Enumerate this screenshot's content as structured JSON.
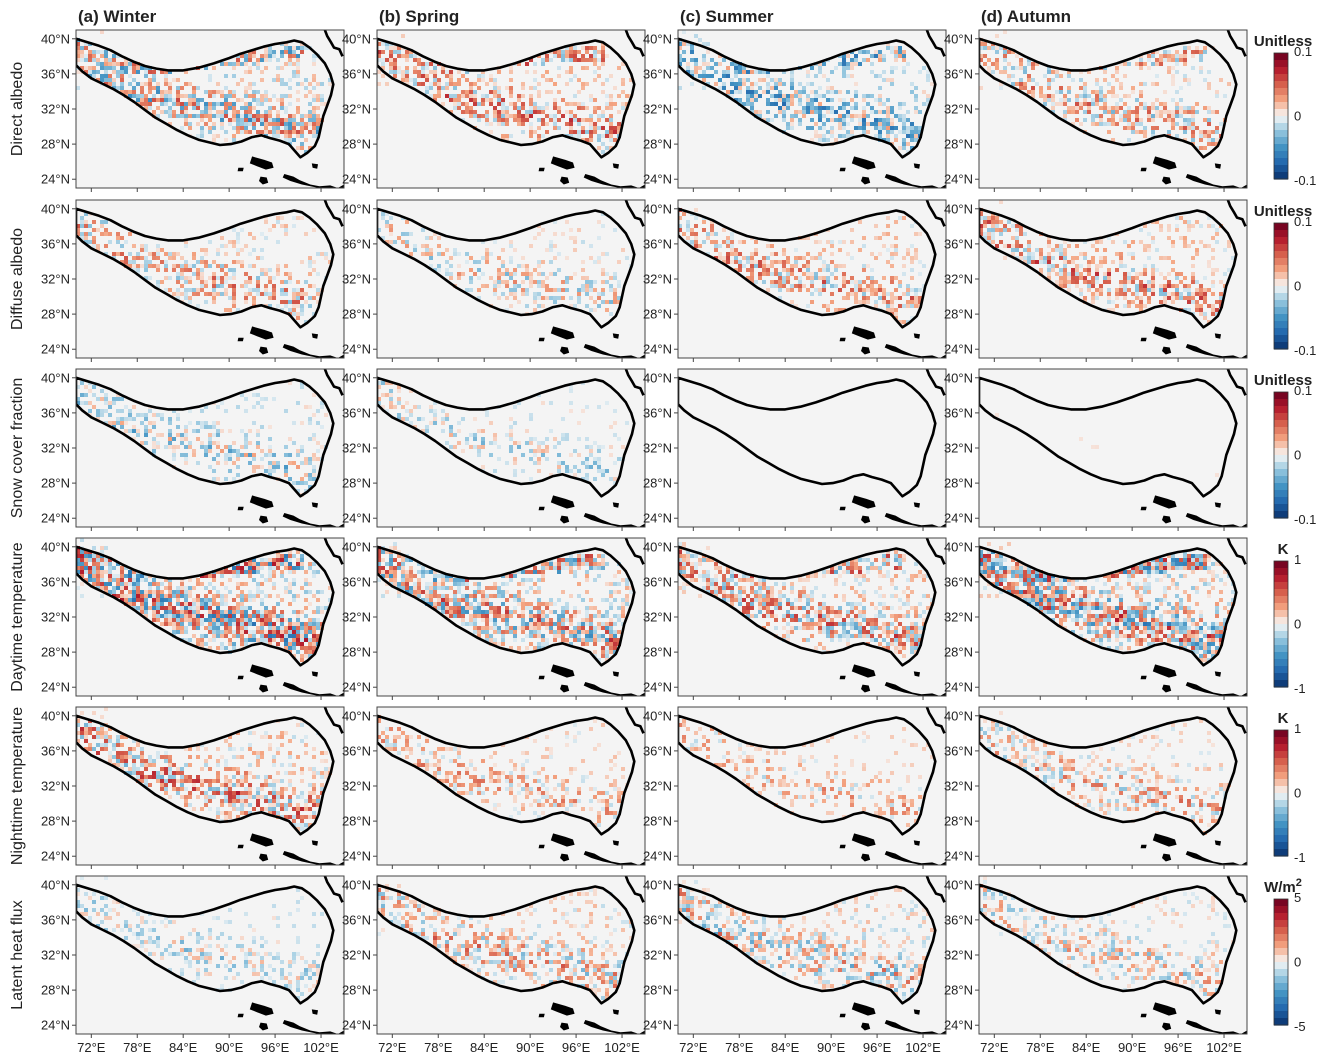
{
  "figure": {
    "columns": [
      {
        "label": "(a) Winter"
      },
      {
        "label": "(b) Spring"
      },
      {
        "label": "(c) Summer"
      },
      {
        "label": "(d) Autumn"
      }
    ],
    "rows": [
      {
        "label": "Direct albedo",
        "unit": "Unitless",
        "ticks": [
          "0.1",
          "0",
          "-0.1"
        ]
      },
      {
        "label": "Diffuse albedo",
        "unit": "Unitless",
        "ticks": [
          "0.1",
          "0",
          "-0.1"
        ]
      },
      {
        "label": "Snow cover fraction",
        "unit": "Unitless",
        "ticks": [
          "0.1",
          "0",
          "-0.1"
        ]
      },
      {
        "label": "Daytime temperature",
        "unit": "K",
        "ticks": [
          "1",
          "0",
          "-1"
        ]
      },
      {
        "label": "Nighttime temperature",
        "unit": "K",
        "ticks": [
          "1",
          "0",
          "-1"
        ]
      },
      {
        "label": "Latent heat flux",
        "unit": "W/m",
        "unit_sup": "2",
        "ticks": [
          "5",
          "0",
          "-5"
        ]
      }
    ],
    "y_ticks": [
      "40°N",
      "36°N",
      "32°N",
      "28°N",
      "24°N"
    ],
    "x_ticks": [
      "72°E",
      "78°E",
      "84°E",
      "90°E",
      "96°E",
      "102°E"
    ],
    "colormap": [
      "#08306b",
      "#2166ac",
      "#4393c3",
      "#92c5de",
      "#f7f7f7",
      "#f4a582",
      "#d6604d",
      "#b2182b",
      "#67001f"
    ],
    "background_color": "#f4f4f4"
  },
  "chart_data": {
    "type": "heatmap",
    "title": "",
    "columns": [
      "(a) Winter",
      "(b) Spring",
      "(c) Summer",
      "(d) Autumn"
    ],
    "rows": [
      "Direct albedo",
      "Diffuse albedo",
      "Snow cover fraction",
      "Daytime temperature",
      "Nighttime temperature",
      "Latent heat flux"
    ],
    "xlim": [
      70,
      105
    ],
    "ylim": [
      23,
      41
    ],
    "x_ticks": [
      72,
      78,
      84,
      90,
      96,
      102
    ],
    "y_ticks": [
      40,
      36,
      32,
      28,
      24
    ],
    "colorbars": [
      {
        "row": "Direct albedo",
        "unit": "Unitless",
        "range": [
          -0.1,
          0.1
        ]
      },
      {
        "row": "Diffuse albedo",
        "unit": "Unitless",
        "range": [
          -0.1,
          0.1
        ]
      },
      {
        "row": "Snow cover fraction",
        "unit": "Unitless",
        "range": [
          -0.1,
          0.1
        ]
      },
      {
        "row": "Daytime temperature",
        "unit": "K",
        "range": [
          -1,
          1
        ]
      },
      {
        "row": "Nighttime temperature",
        "unit": "K",
        "range": [
          -1,
          1
        ]
      },
      {
        "row": "Latent heat flux",
        "unit": "W/m2",
        "range": [
          -5,
          5
        ]
      }
    ],
    "panel_intensity": [
      [
        0.7,
        0.6,
        0.6,
        0.55
      ],
      [
        0.55,
        0.45,
        0.55,
        0.6
      ],
      [
        0.45,
        0.35,
        0.05,
        0.08
      ],
      [
        0.9,
        0.75,
        0.65,
        0.85
      ],
      [
        0.65,
        0.4,
        0.35,
        0.45
      ],
      [
        0.35,
        0.55,
        0.55,
        0.45
      ]
    ],
    "panel_bias": [
      [
        0.0,
        0.55,
        -0.6,
        0.35
      ],
      [
        0.35,
        0.05,
        0.5,
        0.55
      ],
      [
        -0.4,
        -0.3,
        0.0,
        0.1
      ],
      [
        0.1,
        0.1,
        0.35,
        0.1
      ],
      [
        0.5,
        0.55,
        0.6,
        0.4
      ],
      [
        -0.4,
        0.3,
        0.1,
        0.1
      ]
    ]
  }
}
